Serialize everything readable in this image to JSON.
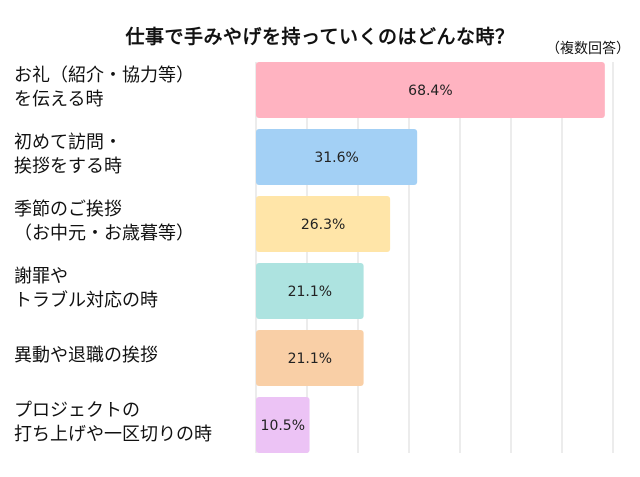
{
  "chart_data": {
    "type": "bar",
    "orientation": "horizontal",
    "title": "仕事で手みやげを持っていくのはどんな時？",
    "subtitle": "（複数回答）",
    "categories": [
      "お礼（紹介・協力等）\nを伝える時",
      "初めて訪問・\n挨拶をする時",
      "季節のご挨拶\n（お中元・お歳暮等）",
      "謝罪や\nトラブル対応の時",
      "異動や退職の挨拶",
      "プロジェクトの\n打ち上げや一区切りの時"
    ],
    "values": [
      68.4,
      31.6,
      26.3,
      21.1,
      21.1,
      10.5
    ],
    "data_labels": [
      "68.4%",
      "31.6%",
      "26.3%",
      "21.1%",
      "21.1%",
      "10.5%"
    ],
    "colors": [
      "#ffb3c1",
      "#a3d0f5",
      "#ffe5a8",
      "#ade3e0",
      "#f9cfa6",
      "#ecc3f5"
    ],
    "xlim": [
      0,
      70
    ],
    "grid": true,
    "grid_color": "#e6e6e6"
  }
}
